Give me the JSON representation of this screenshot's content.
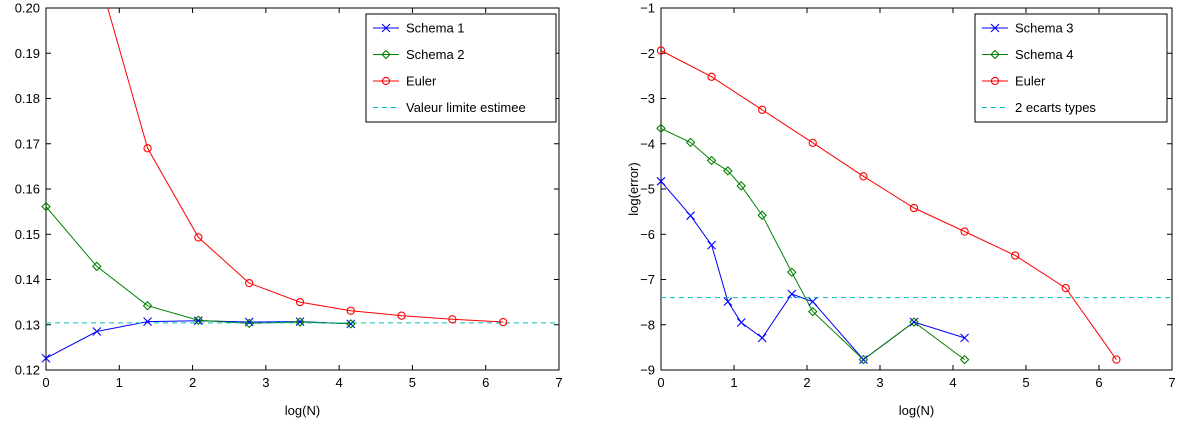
{
  "chart_data": [
    {
      "type": "line",
      "title": "",
      "xlabel": "log(N)",
      "ylabel": "",
      "xlim": [
        0,
        7
      ],
      "ylim": [
        0.12,
        0.2
      ],
      "xticks": [
        "0",
        "1",
        "2",
        "3",
        "4",
        "5",
        "6",
        "7"
      ],
      "yticks": [
        "0.12",
        "0.13",
        "0.14",
        "0.15",
        "0.16",
        "0.17",
        "0.18",
        "0.19",
        "0.20"
      ],
      "grid": false,
      "legend_position": "top-right",
      "series": [
        {
          "name": "Schema 1",
          "color": "#0000ff",
          "marker": "x",
          "style": "solid",
          "x": [
            0,
            0.693,
            1.386,
            2.079,
            2.773,
            3.466,
            4.159
          ],
          "y": [
            0.1226,
            0.1285,
            0.1307,
            0.1309,
            0.1306,
            0.1307,
            0.1302
          ]
        },
        {
          "name": "Schema 2",
          "color": "#008000",
          "marker": "diamond",
          "style": "solid",
          "x": [
            0,
            0.693,
            1.386,
            2.079,
            2.773,
            3.466,
            4.159
          ],
          "y": [
            0.1561,
            0.1429,
            0.1342,
            0.131,
            0.1303,
            0.1306,
            0.1302
          ]
        },
        {
          "name": "Euler",
          "color": "#ff0000",
          "marker": "circle",
          "style": "solid",
          "x": [
            0.693,
            1.386,
            2.079,
            2.773,
            3.466,
            4.159,
            4.852,
            5.545,
            6.238
          ],
          "y": [
            0.2085,
            0.169,
            0.1493,
            0.1392,
            0.135,
            0.1331,
            0.132,
            0.1312,
            0.1306
          ]
        },
        {
          "name": "Valeur limite estimee",
          "color": "#00c0c0",
          "marker": "none",
          "style": "dashed",
          "x": [
            0,
            7
          ],
          "y": [
            0.1304,
            0.1304
          ]
        }
      ]
    },
    {
      "type": "line",
      "title": "",
      "xlabel": "log(N)",
      "ylabel": "log(error)",
      "xlim": [
        0,
        7
      ],
      "ylim": [
        -9,
        -1
      ],
      "xticks": [
        "0",
        "1",
        "2",
        "3",
        "4",
        "5",
        "6",
        "7"
      ],
      "yticks": [
        "−9",
        "−8",
        "−7",
        "−6",
        "−5",
        "−4",
        "−3",
        "−2",
        "−1"
      ],
      "grid": false,
      "legend_position": "top-right",
      "series": [
        {
          "name": "Schema 3",
          "color": "#0000ff",
          "marker": "x",
          "style": "solid",
          "x": [
            0,
            0.405,
            0.693,
            0.916,
            1.099,
            1.386,
            1.792,
            2.079,
            2.773,
            3.466,
            4.159
          ],
          "y": [
            -4.83,
            -5.59,
            -6.24,
            -7.49,
            -7.95,
            -8.29,
            -7.32,
            -7.49,
            -8.77,
            -7.94,
            -8.29
          ]
        },
        {
          "name": "Schema 4",
          "color": "#008000",
          "marker": "diamond",
          "style": "solid",
          "x": [
            0,
            0.405,
            0.693,
            0.916,
            1.099,
            1.386,
            1.792,
            2.079,
            2.773,
            3.466,
            4.159
          ],
          "y": [
            -3.66,
            -3.97,
            -4.37,
            -4.6,
            -4.93,
            -5.58,
            -6.84,
            -7.71,
            -8.77,
            -7.94,
            -8.77
          ]
        },
        {
          "name": "Euler",
          "color": "#ff0000",
          "marker": "circle",
          "style": "solid",
          "x": [
            0,
            0.693,
            1.386,
            2.079,
            2.773,
            3.466,
            4.159,
            4.852,
            5.545,
            6.238
          ],
          "y": [
            -1.94,
            -2.52,
            -3.25,
            -3.98,
            -4.72,
            -5.42,
            -5.94,
            -6.47,
            -7.19,
            -8.77
          ]
        },
        {
          "name": "2 ecarts types",
          "color": "#00c0c0",
          "marker": "none",
          "style": "dashed",
          "x": [
            0,
            7
          ],
          "y": [
            -7.4,
            -7.4
          ]
        }
      ]
    }
  ]
}
